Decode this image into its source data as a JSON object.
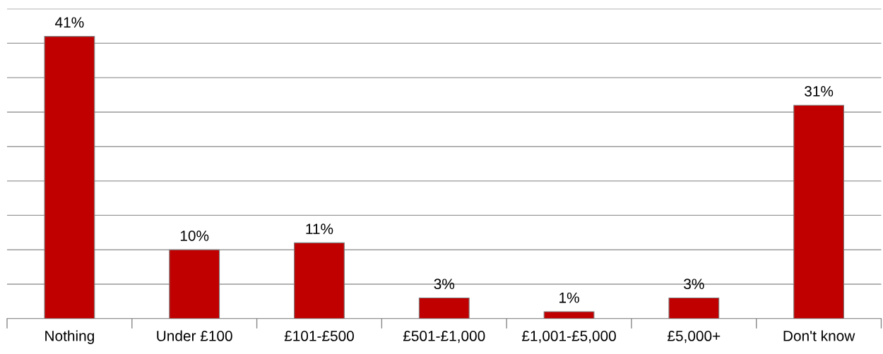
{
  "chart_data": {
    "type": "bar",
    "categories": [
      "Nothing",
      "Under £100",
      "£101-£500",
      "£501-£1,000",
      "£1,001-£5,000",
      "£5,000+",
      "Don't know"
    ],
    "values": [
      41,
      10,
      11,
      3,
      1,
      3,
      31
    ],
    "color": "#c00000",
    "value_labels": [
      "41%",
      "10%",
      "11%",
      "3%",
      "1%",
      "3%",
      "31%"
    ],
    "ylim": [
      0,
      45
    ],
    "yticks": [
      {
        "value": 0,
        "label": null
      },
      {
        "value": 5,
        "label": null
      },
      {
        "value": 10,
        "label": null
      },
      {
        "value": 15,
        "label": null
      },
      {
        "value": 20,
        "label": null
      },
      {
        "value": 25,
        "label": null
      },
      {
        "value": 30,
        "label": null
      },
      {
        "value": 35,
        "label": null
      },
      {
        "value": 40,
        "label": null
      },
      {
        "value": 45,
        "label": null
      }
    ],
    "grid": "y",
    "tick_labels": "x",
    "legend": false
  }
}
